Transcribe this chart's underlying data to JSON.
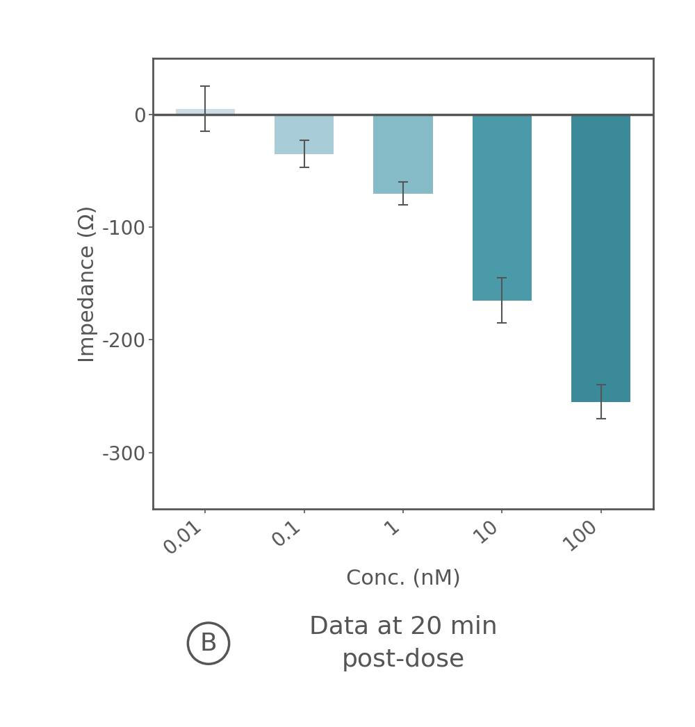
{
  "categories": [
    "0.01",
    "0.1",
    "1",
    "10",
    "100"
  ],
  "values": [
    5,
    -35,
    -70,
    -165,
    -255
  ],
  "errors": [
    20,
    12,
    10,
    20,
    15
  ],
  "bar_colors": [
    "#ccdde8",
    "#a8cdd8",
    "#85bcc8",
    "#4a9aaa",
    "#3a8a9a"
  ],
  "ylabel": "Impedance (Ω)",
  "xlabel": "Conc. (nM)",
  "ylim": [
    -350,
    50
  ],
  "yticks": [
    0,
    -100,
    -200,
    -300
  ],
  "background_color": "#ffffff",
  "spine_color": "#555555",
  "tick_color": "#555555",
  "label_color": "#555555",
  "annotation_label": "B",
  "annotation_text": "Data at 20 min\npost-dose",
  "annotation_fontsize": 26,
  "ylabel_fontsize": 22,
  "xlabel_fontsize": 22,
  "tick_fontsize": 20,
  "xtick_rotation": 40,
  "bar_width": 0.6
}
